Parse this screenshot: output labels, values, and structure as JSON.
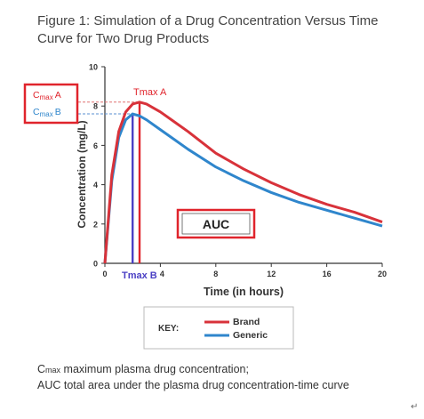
{
  "figure": {
    "title": "Figure 1: Simulation of a Drug Concentration Versus Time Curve for Two Drug Products",
    "footnote_cmax_label": "max",
    "footnote_cmax_prefix": "C",
    "footnote_cmax_text": "maximum plasma drug concentration;",
    "footnote_auc_text": "AUC total area under the plasma drug concentration-time curve",
    "corner_mark": "↵"
  },
  "annotations": {
    "cmax_a": {
      "c": "C",
      "sub": "max",
      "suffix": "A"
    },
    "cmax_b": {
      "c": "C",
      "sub": "max",
      "suffix": "B"
    },
    "tmax_a": "Tmax A",
    "tmax_b": "Tmax B",
    "auc": "AUC"
  },
  "legend": {
    "key_label": "KEY:",
    "brand": "Brand",
    "generic": "Generic"
  },
  "colors": {
    "brand": "#d8323a",
    "generic": "#2f86cc",
    "annotation_red": "#e0242c",
    "tmax_b_line": "#4a3fc4",
    "axis": "#333333"
  },
  "chart_data": {
    "type": "line",
    "title": "",
    "xlabel": "Time (in hours)",
    "ylabel": "Concentration (mg/L)",
    "xlim": [
      0,
      20
    ],
    "ylim": [
      0,
      10
    ],
    "xticks": [
      0,
      4,
      8,
      12,
      16,
      20
    ],
    "yticks": [
      0,
      2,
      4,
      6,
      8,
      10
    ],
    "series": [
      {
        "name": "Brand",
        "x": [
          0,
          0.5,
          1,
          1.5,
          2,
          2.5,
          3,
          4,
          5,
          6,
          8,
          10,
          12,
          14,
          16,
          18,
          20
        ],
        "y": [
          0,
          4.5,
          6.7,
          7.7,
          8.1,
          8.2,
          8.1,
          7.7,
          7.2,
          6.7,
          5.6,
          4.8,
          4.1,
          3.5,
          3.0,
          2.6,
          2.1
        ]
      },
      {
        "name": "Generic",
        "x": [
          0,
          0.5,
          1,
          1.5,
          2,
          2.5,
          3,
          4,
          5,
          6,
          8,
          10,
          12,
          14,
          16,
          18,
          20
        ],
        "y": [
          0,
          4.2,
          6.4,
          7.3,
          7.6,
          7.5,
          7.3,
          6.8,
          6.3,
          5.8,
          4.9,
          4.2,
          3.6,
          3.1,
          2.7,
          2.3,
          1.9
        ]
      }
    ],
    "cmax": {
      "A": 8.2,
      "B": 7.6
    },
    "tmax": {
      "A": 2.5,
      "B": 2.0
    },
    "grid": false,
    "legend_position": "bottom"
  }
}
